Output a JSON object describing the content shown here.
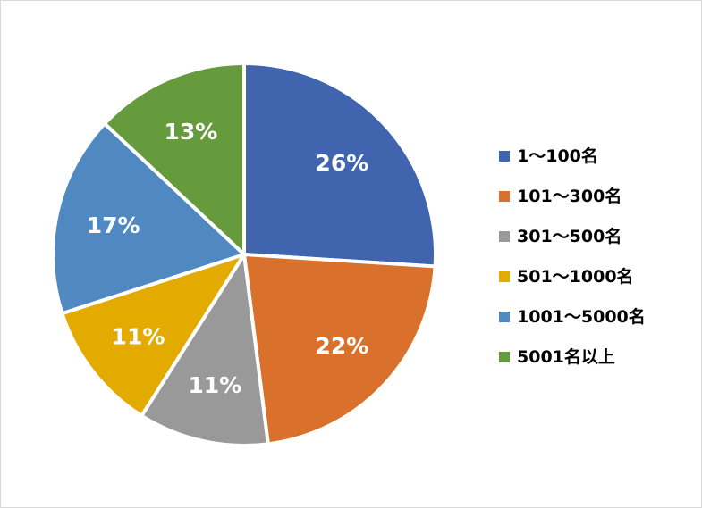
{
  "chart_data": {
    "type": "pie",
    "title": "",
    "legend_position": "right",
    "categories": [
      "1～100名",
      "101～300名",
      "301～500名",
      "501～1000名",
      "1001～5000名",
      "5001名以上"
    ],
    "values": [
      26,
      22,
      11,
      11,
      17,
      13
    ],
    "labels": [
      "26%",
      "22%",
      "11%",
      "11%",
      "17%",
      "13%"
    ],
    "colors": [
      "#4065AE",
      "#D9712C",
      "#999999",
      "#E3AA00",
      "#5089C2",
      "#659A3D"
    ]
  }
}
